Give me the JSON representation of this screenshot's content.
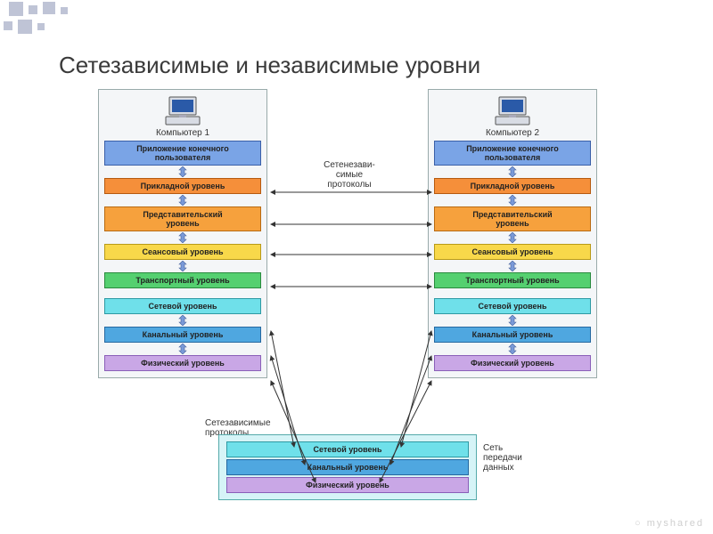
{
  "title": "Сетезависимые и независимые уровни",
  "computer1_label": "Компьютер 1",
  "computer2_label": "Компьютер 2",
  "mid_upper_label": "Сетенезави-\nсимые\nпротоколы",
  "mid_lower_label": "Сетезависимые\nпротоколы",
  "net_label": "Сеть\nпередачи\nданных",
  "layers": [
    {
      "text": "Приложение конечного\nпользователя",
      "bg": "#7aa4e6",
      "border": "#3a5fa8"
    },
    {
      "text": "Прикладной уровень",
      "bg": "#f58f3a",
      "border": "#b55a10"
    },
    {
      "text": "Представительский\nуровень",
      "bg": "#f6a13d",
      "border": "#b86a12"
    },
    {
      "text": "Сеансовый уровень",
      "bg": "#f8d84a",
      "border": "#b89a18"
    },
    {
      "text": "Транспортный уровень",
      "bg": "#55d070",
      "border": "#2a8a3e"
    },
    {
      "text": "Сетевой уровень",
      "bg": "#6fe0ea",
      "border": "#2e99a3"
    },
    {
      "text": "Канальный уровень",
      "bg": "#4fa7e0",
      "border": "#2668a0"
    },
    {
      "text": "Физический уровень",
      "bg": "#c9a7e6",
      "border": "#8a5fb8"
    }
  ],
  "bottom_layers": [
    {
      "text": "Сетевой уровень",
      "bg": "#6fe0ea",
      "border": "#2e99a3"
    },
    {
      "text": "Канальный уровень",
      "bg": "#4fa7e0",
      "border": "#2668a0"
    },
    {
      "text": "Физический уровень",
      "bg": "#c9a7e6",
      "border": "#8a5fb8"
    }
  ],
  "colors": {
    "deco": "#bfc4d6",
    "title": "#3a3a3a",
    "stack_bg": "#f4f6f8",
    "stack_border": "#99aabb",
    "bottom_bg": "#d6f4f7",
    "bottom_border": "#55aaaa",
    "arrow": "#333333"
  },
  "watermark": "myshared"
}
